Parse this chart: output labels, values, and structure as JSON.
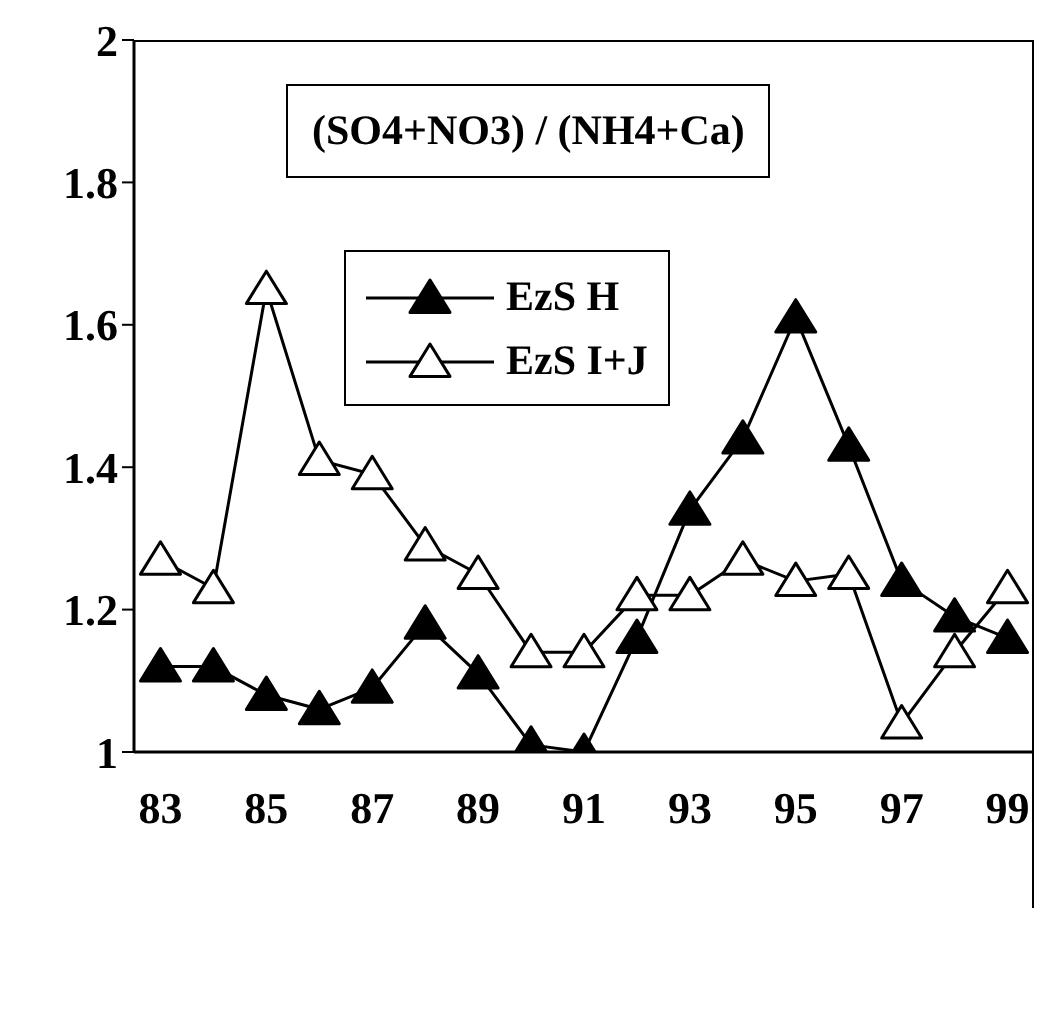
{
  "chart_data": {
    "type": "line",
    "title": "(SO4+NO3) / (NH4+Ca)",
    "categories": [
      "83",
      null,
      "85",
      null,
      "87",
      null,
      "89",
      null,
      "91",
      null,
      "93",
      null,
      "95",
      null,
      "97",
      null,
      "99"
    ],
    "series": [
      {
        "name": "EzS H",
        "color": "#000000",
        "values": [
          1.12,
          1.12,
          1.08,
          1.06,
          1.09,
          1.18,
          1.11,
          1.01,
          1.0,
          1.16,
          1.34,
          1.44,
          1.61,
          1.43,
          1.24,
          1.19,
          1.16
        ]
      },
      {
        "name": "EzS I+J",
        "color": "#ffffff",
        "values": [
          1.27,
          1.23,
          1.65,
          1.41,
          1.39,
          1.29,
          1.25,
          1.14,
          1.14,
          1.22,
          1.22,
          1.27,
          1.24,
          1.25,
          1.04,
          1.14,
          1.23
        ]
      }
    ],
    "ylim": [
      1,
      2
    ],
    "yticks": [
      1,
      1.2,
      1.4,
      1.6,
      1.8,
      2
    ],
    "grid": false,
    "legend": "top",
    "marker": "triangle",
    "line_style": "solid"
  }
}
